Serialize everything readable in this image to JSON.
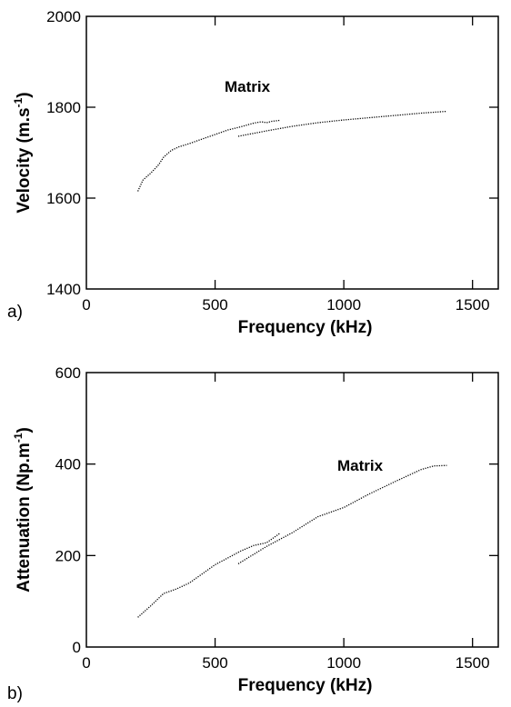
{
  "chart_data": [
    {
      "type": "line",
      "panel_label": "a)",
      "xlabel": "Frequency (kHz)",
      "ylabel_base": "Velocity (m.s",
      "ylabel_sup": "-1",
      "ylabel_close": ")",
      "annotation": "Matrix",
      "xlim": [
        0,
        1600
      ],
      "ylim": [
        1400,
        2000
      ],
      "xticks": [
        0,
        500,
        1000,
        1500
      ],
      "xtick_labels": [
        "0",
        "500",
        "1000",
        "1500"
      ],
      "yticks": [
        1400,
        1600,
        1800,
        2000
      ],
      "ytick_labels": [
        "1400",
        "1600",
        "1800",
        "2000"
      ],
      "series": [
        {
          "x": [
            200,
            220,
            250,
            280,
            300,
            330,
            360,
            400,
            450,
            500,
            550,
            600,
            650,
            680,
            700,
            720,
            750
          ],
          "y": [
            1615,
            1640,
            1655,
            1673,
            1690,
            1705,
            1713,
            1720,
            1730,
            1740,
            1750,
            1757,
            1765,
            1768,
            1766,
            1769,
            1771
          ]
        },
        {
          "x": [
            590,
            700,
            800,
            900,
            1000,
            1100,
            1200,
            1300,
            1400
          ],
          "y": [
            1736,
            1748,
            1758,
            1766,
            1772,
            1777,
            1782,
            1787,
            1791
          ]
        }
      ]
    },
    {
      "type": "line",
      "panel_label": "b)",
      "xlabel": "Frequency (kHz)",
      "ylabel_base": "Attenuation (Np.m",
      "ylabel_sup": "-1",
      "ylabel_close": ")",
      "annotation": "Matrix",
      "xlim": [
        0,
        1600
      ],
      "ylim": [
        0,
        600
      ],
      "xticks": [
        0,
        500,
        1000,
        1500
      ],
      "xtick_labels": [
        "0",
        "500",
        "1000",
        "1500"
      ],
      "yticks": [
        0,
        200,
        400,
        600
      ],
      "ytick_labels": [
        "0",
        "200",
        "400",
        "600"
      ],
      "series": [
        {
          "x": [
            200,
            250,
            300,
            350,
            400,
            450,
            500,
            550,
            600,
            650,
            700,
            730,
            750
          ],
          "y": [
            65,
            90,
            117,
            127,
            140,
            160,
            180,
            195,
            210,
            222,
            228,
            240,
            248
          ]
        },
        {
          "x": [
            590,
            700,
            800,
            900,
            1000,
            1100,
            1200,
            1300,
            1350,
            1400
          ],
          "y": [
            182,
            220,
            250,
            285,
            305,
            335,
            362,
            388,
            396,
            397
          ]
        }
      ]
    }
  ]
}
